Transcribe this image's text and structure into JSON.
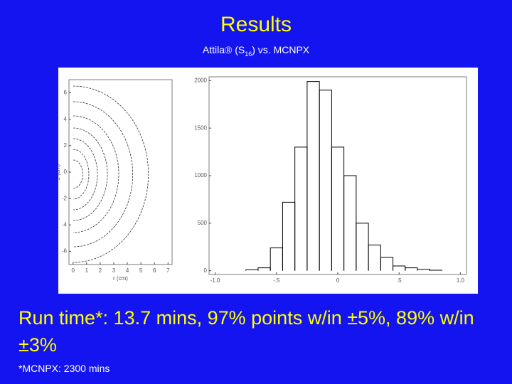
{
  "title": "Results",
  "subtitle": {
    "text": "Attila® (S",
    "subscript": "16",
    "suffix": ") vs. MCNPX"
  },
  "chart_data": [
    {
      "type": "contour",
      "xlabel": "r (cm)",
      "ylabel": "z (cm)",
      "xlim": [
        -0.3,
        7.3
      ],
      "ylim": [
        -7,
        7
      ],
      "xticks": [
        0,
        1,
        2,
        3,
        4,
        5,
        6,
        7
      ],
      "yticks": [
        -6,
        -4,
        -2,
        0,
        2,
        4,
        6
      ]
    },
    {
      "type": "histogram",
      "xlim": [
        -1.05,
        1.05
      ],
      "ylim": [
        -40,
        2040
      ],
      "xticks": [
        {
          "value": -1,
          "label": "-1.0"
        },
        {
          "value": -0.5,
          "label": "-.5"
        },
        0,
        {
          "value": 0.5,
          "label": ".5"
        },
        {
          "value": 1,
          "label": "1.0"
        }
      ],
      "yticks": [
        0,
        500,
        1000,
        1500,
        2000
      ],
      "bins": [
        -0.75,
        -0.65,
        -0.55,
        -0.45,
        -0.35,
        -0.25,
        -0.15,
        -0.05,
        0.05,
        0.15,
        0.25,
        0.35,
        0.45,
        0.55,
        0.65,
        0.75,
        0.85
      ],
      "values": [
        10,
        30,
        240,
        720,
        1300,
        1990,
        1900,
        1300,
        1000,
        500,
        270,
        140,
        50,
        30,
        15,
        5
      ],
      "color": "#000000"
    }
  ],
  "body": "Run time*: 13.7 mins, 97% points w/in ±5%, 89% w/in ±3%",
  "footnote": "*MCNPX: 2300 mins"
}
